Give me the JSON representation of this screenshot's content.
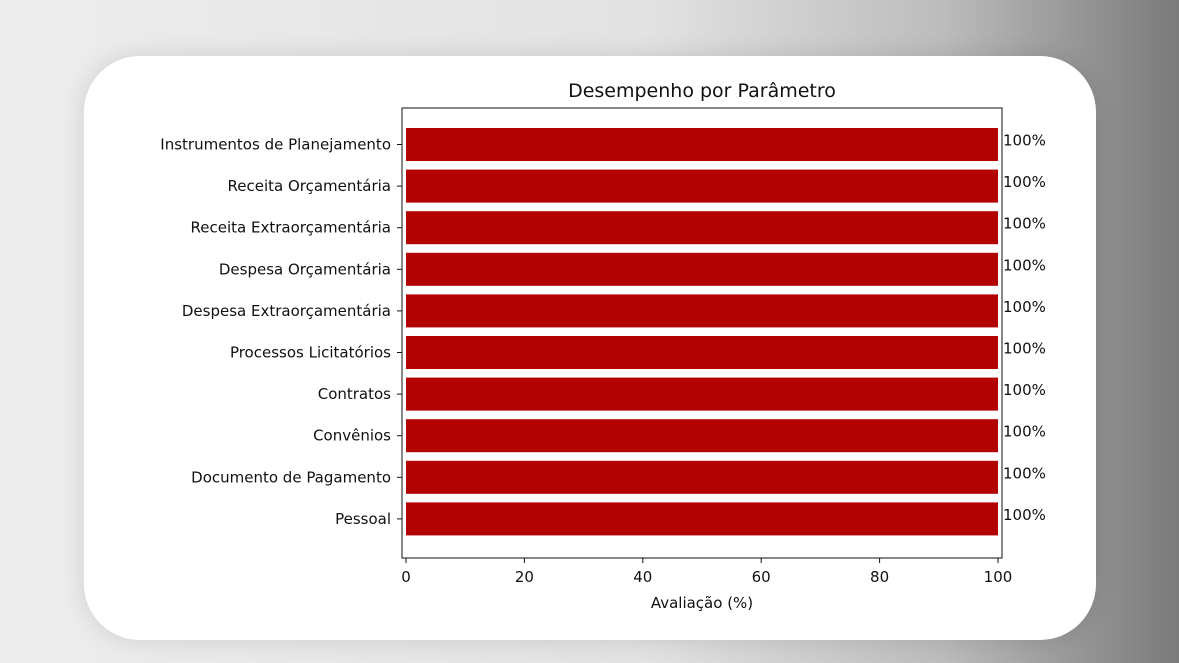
{
  "chart_data": {
    "type": "bar",
    "orientation": "horizontal",
    "title": "Desempenho por Parâmetro",
    "xlabel": "Avaliação (%)",
    "ylabel": "",
    "xlim": [
      0,
      100
    ],
    "xticks": [
      "0",
      "20",
      "40",
      "60",
      "80",
      "100"
    ],
    "categories": [
      "Instrumentos de Planejamento",
      "Receita Orçamentária",
      "Receita Extraorçamentária",
      "Despesa Orçamentária",
      "Despesa Extraorçamentária",
      "Processos Licitatórios",
      "Contratos",
      "Convênios",
      "Documento de Pagamento",
      "Pessoal"
    ],
    "values": [
      100,
      100,
      100,
      100,
      100,
      100,
      100,
      100,
      100,
      100
    ],
    "data_labels": [
      "100%",
      "100%",
      "100%",
      "100%",
      "100%",
      "100%",
      "100%",
      "100%",
      "100%",
      "100%"
    ],
    "bar_color": "#b30000",
    "grid": false,
    "legend": "none"
  }
}
